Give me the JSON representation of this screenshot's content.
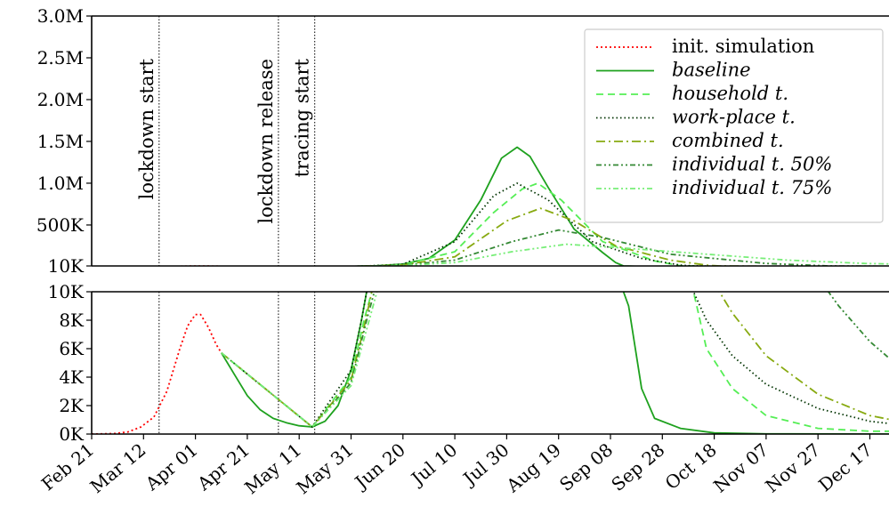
{
  "chart_data": {
    "type": "line",
    "title": "",
    "xlabel": "",
    "ylabel": "",
    "x_ticks": [
      "Feb 21",
      "Mar 12",
      "Apr 01",
      "Apr 21",
      "May 11",
      "May 31",
      "Jun 20",
      "Jul 10",
      "Jul 30",
      "Aug 19",
      "Sep 08",
      "Sep 28",
      "Oct 18",
      "Nov 07",
      "Nov 27",
      "Dec 17"
    ],
    "upper_panel": {
      "ylim": [
        10000,
        3000000
      ],
      "y_ticks": [
        "10K",
        "500K",
        "1.0M",
        "1.5M",
        "2.0M",
        "2.5M",
        "3.0M"
      ],
      "y_tick_values": [
        10000,
        500000,
        1000000,
        1500000,
        2000000,
        2500000,
        3000000
      ]
    },
    "lower_panel": {
      "ylim": [
        0,
        10000
      ],
      "y_ticks": [
        "0K",
        "2K",
        "4K",
        "6K",
        "8K",
        "10K"
      ],
      "y_tick_values": [
        0,
        2000,
        4000,
        6000,
        8000,
        10000
      ]
    },
    "vertical_markers": [
      {
        "label": "lockdown start",
        "date": "2020-03-18"
      },
      {
        "label": "lockdown release",
        "date": "2020-05-03"
      },
      {
        "label": "tracing start",
        "date": "2020-05-17"
      }
    ],
    "legend": {
      "position": "top-right"
    },
    "series": [
      {
        "name": "init. simulation",
        "color": "#ff0000",
        "dash": "2,3",
        "italic": false,
        "points": [
          [
            "2020-02-21",
            0
          ],
          [
            "2020-03-01",
            40
          ],
          [
            "2020-03-06",
            150
          ],
          [
            "2020-03-11",
            500
          ],
          [
            "2020-03-16",
            1200
          ],
          [
            "2020-03-21",
            3000
          ],
          [
            "2020-03-26",
            6000
          ],
          [
            "2020-03-29",
            7600
          ],
          [
            "2020-04-01",
            8400
          ],
          [
            "2020-04-03",
            8400
          ],
          [
            "2020-04-06",
            7500
          ],
          [
            "2020-04-09",
            6300
          ],
          [
            "2020-04-11",
            5700
          ]
        ]
      },
      {
        "name": "baseline",
        "color": "#1ea11e",
        "dash": "",
        "italic": true,
        "points": [
          [
            "2020-04-11",
            5700
          ],
          [
            "2020-04-16",
            4200
          ],
          [
            "2020-04-21",
            2700
          ],
          [
            "2020-04-26",
            1700
          ],
          [
            "2020-05-01",
            1100
          ],
          [
            "2020-05-06",
            800
          ],
          [
            "2020-05-11",
            580
          ],
          [
            "2020-05-16",
            500
          ],
          [
            "2020-05-21",
            900
          ],
          [
            "2020-05-26",
            2000
          ],
          [
            "2020-05-31",
            4500
          ],
          [
            "2020-06-04",
            8000
          ],
          [
            "2020-06-06",
            10000
          ],
          [
            "2020-06-10",
            12000
          ],
          [
            "2020-06-20",
            32000
          ],
          [
            "2020-06-30",
            100000
          ],
          [
            "2020-07-10",
            320000
          ],
          [
            "2020-07-20",
            800000
          ],
          [
            "2020-07-28",
            1300000
          ],
          [
            "2020-08-03",
            1430000
          ],
          [
            "2020-08-08",
            1320000
          ],
          [
            "2020-08-15",
            950000
          ],
          [
            "2020-08-25",
            450000
          ],
          [
            "2020-09-05",
            170000
          ],
          [
            "2020-09-10",
            50000
          ],
          [
            "2020-09-13",
            10000
          ],
          [
            "2020-09-15",
            9000
          ],
          [
            "2020-09-20",
            3200
          ],
          [
            "2020-09-25",
            1100
          ],
          [
            "2020-10-05",
            400
          ],
          [
            "2020-10-18",
            80
          ],
          [
            "2020-11-07",
            10
          ],
          [
            "2021-01-01",
            0
          ]
        ]
      },
      {
        "name": "household t.",
        "color": "#55ee55",
        "dash": "8,5",
        "italic": true,
        "points": [
          [
            "2020-04-11",
            5700
          ],
          [
            "2020-05-16",
            500
          ],
          [
            "2020-05-31",
            4000
          ],
          [
            "2020-06-05",
            8000
          ],
          [
            "2020-06-08",
            10000
          ],
          [
            "2020-06-20",
            25000
          ],
          [
            "2020-07-10",
            180000
          ],
          [
            "2020-07-25",
            650000
          ],
          [
            "2020-08-05",
            930000
          ],
          [
            "2020-08-11",
            1000000
          ],
          [
            "2020-08-20",
            800000
          ],
          [
            "2020-09-05",
            300000
          ],
          [
            "2020-09-25",
            70000
          ],
          [
            "2020-10-05",
            12000
          ],
          [
            "2020-10-10",
            10000
          ],
          [
            "2020-10-15",
            6000
          ],
          [
            "2020-10-25",
            3200
          ],
          [
            "2020-11-07",
            1300
          ],
          [
            "2020-11-27",
            400
          ],
          [
            "2020-12-17",
            200
          ],
          [
            "2020-12-31",
            200
          ]
        ]
      },
      {
        "name": "work-place t.",
        "color": "#003300",
        "dash": "1.5,3",
        "italic": true,
        "points": [
          [
            "2020-04-11",
            5700
          ],
          [
            "2020-05-16",
            500
          ],
          [
            "2020-05-31",
            4500
          ],
          [
            "2020-06-04",
            8000
          ],
          [
            "2020-06-06",
            10000
          ],
          [
            "2020-06-20",
            30000
          ],
          [
            "2020-07-10",
            300000
          ],
          [
            "2020-07-25",
            850000
          ],
          [
            "2020-08-03",
            1000000
          ],
          [
            "2020-08-15",
            800000
          ],
          [
            "2020-09-01",
            300000
          ],
          [
            "2020-09-20",
            100000
          ],
          [
            "2020-10-05",
            20000
          ],
          [
            "2020-10-10",
            10000
          ],
          [
            "2020-10-15",
            8000
          ],
          [
            "2020-10-25",
            5500
          ],
          [
            "2020-11-07",
            3500
          ],
          [
            "2020-11-27",
            1800
          ],
          [
            "2020-12-17",
            900
          ],
          [
            "2020-12-31",
            600
          ]
        ]
      },
      {
        "name": "combined t.",
        "color": "#88aa11",
        "dash": "10,4,2,4",
        "italic": true,
        "points": [
          [
            "2020-04-11",
            5700
          ],
          [
            "2020-05-16",
            500
          ],
          [
            "2020-05-31",
            3800
          ],
          [
            "2020-06-05",
            7500
          ],
          [
            "2020-06-08",
            10000
          ],
          [
            "2020-06-20",
            22000
          ],
          [
            "2020-07-10",
            120000
          ],
          [
            "2020-07-30",
            550000
          ],
          [
            "2020-08-12",
            700000
          ],
          [
            "2020-08-25",
            550000
          ],
          [
            "2020-09-10",
            250000
          ],
          [
            "2020-10-01",
            80000
          ],
          [
            "2020-10-15",
            20000
          ],
          [
            "2020-10-20",
            10000
          ],
          [
            "2020-10-25",
            8500
          ],
          [
            "2020-11-07",
            5500
          ],
          [
            "2020-11-27",
            2800
          ],
          [
            "2020-12-17",
            1300
          ],
          [
            "2020-12-31",
            800
          ]
        ]
      },
      {
        "name": "individual t. 50%",
        "color": "#338833",
        "dash": "6,3,2,3,2,3",
        "italic": true,
        "points": [
          [
            "2020-04-11",
            5700
          ],
          [
            "2020-05-16",
            500
          ],
          [
            "2020-05-31",
            3600
          ],
          [
            "2020-06-06",
            8000
          ],
          [
            "2020-06-09",
            10000
          ],
          [
            "2020-06-20",
            18000
          ],
          [
            "2020-07-10",
            80000
          ],
          [
            "2020-08-01",
            300000
          ],
          [
            "2020-08-19",
            440000
          ],
          [
            "2020-09-05",
            350000
          ],
          [
            "2020-10-01",
            150000
          ],
          [
            "2020-11-07",
            40000
          ],
          [
            "2020-11-27",
            15000
          ],
          [
            "2020-12-01",
            10000
          ],
          [
            "2020-12-05",
            9000
          ],
          [
            "2020-12-17",
            6500
          ],
          [
            "2020-12-31",
            4300
          ]
        ]
      },
      {
        "name": "individual t. 75%",
        "color": "#77ee77",
        "dash": "6,3,2,3,2,3",
        "italic": true,
        "points": [
          [
            "2020-04-11",
            5700
          ],
          [
            "2020-05-16",
            500
          ],
          [
            "2020-05-31",
            3400
          ],
          [
            "2020-06-07",
            8000
          ],
          [
            "2020-06-10",
            10000
          ],
          [
            "2020-06-20",
            15000
          ],
          [
            "2020-07-10",
            50000
          ],
          [
            "2020-08-01",
            180000
          ],
          [
            "2020-08-22",
            270000
          ],
          [
            "2020-09-15",
            220000
          ],
          [
            "2020-10-15",
            150000
          ],
          [
            "2020-11-15",
            80000
          ],
          [
            "2020-12-15",
            40000
          ],
          [
            "2020-12-31",
            30000
          ]
        ]
      }
    ]
  }
}
